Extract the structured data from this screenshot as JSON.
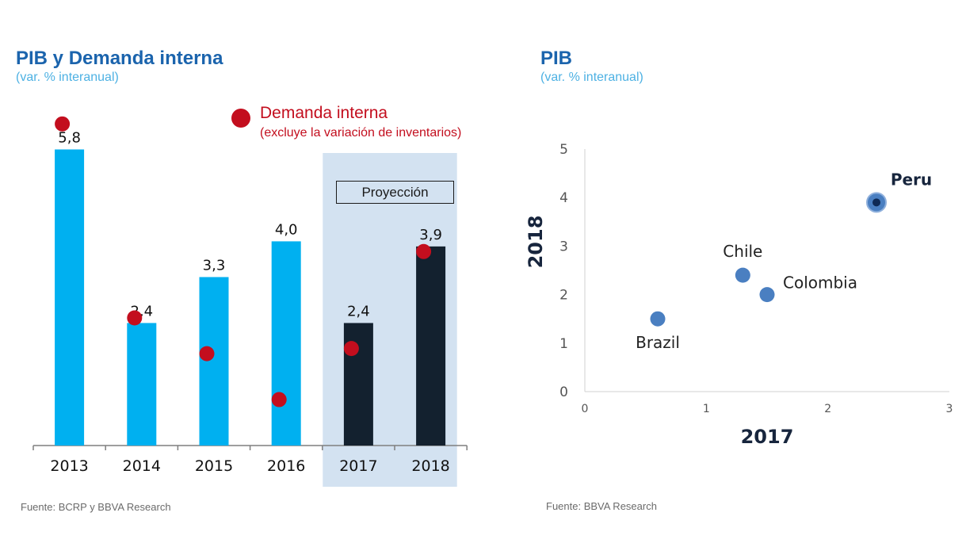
{
  "left_panel": {
    "title": "PIB y Demanda interna",
    "subtitle": "(var. % interanual)",
    "legend_label": "Demanda interna",
    "legend_sublabel": "(excluye la variación de inventarios)",
    "projection_label": "Proyección",
    "source": "Fuente: BCRP y BBVA Research"
  },
  "right_panel": {
    "title": "PIB",
    "subtitle": "(var. % interanual)",
    "source": "Fuente: BBVA Research"
  },
  "colors": {
    "historical_bar": "#00b0f0",
    "projection_bar": "#13212f",
    "projection_band": "#d3e2f1",
    "demand_dot": "#c30e1e",
    "scatter_point": "#4a7fc1",
    "scatter_highlight_core": "#0f2a55",
    "title": "#1b64ad",
    "subtitle": "#4db1e3"
  },
  "chart_data": [
    {
      "type": "bar",
      "categories": [
        "2013",
        "2014",
        "2015",
        "2016",
        "2017",
        "2018"
      ],
      "series": [
        {
          "name": "PIB",
          "values": [
            5.8,
            2.4,
            3.3,
            4.0,
            2.4,
            3.9
          ],
          "value_labels": [
            "5,8",
            "2,4",
            "3,3",
            "4,0",
            "2,4",
            "3,9"
          ],
          "projection": [
            false,
            false,
            false,
            false,
            true,
            true
          ]
        },
        {
          "name": "Demanda interna",
          "style": "dot",
          "values": [
            6.3,
            2.5,
            1.8,
            0.9,
            1.9,
            3.8
          ]
        }
      ],
      "ylim": [
        0,
        6.6
      ],
      "grid": false,
      "legend_position": "top-right"
    },
    {
      "type": "scatter",
      "xlabel": "2017",
      "ylabel": "2018",
      "xlim": [
        0,
        3
      ],
      "ylim": [
        0,
        5
      ],
      "x_ticks": [
        "0",
        "1",
        "2",
        "3"
      ],
      "y_ticks": [
        "0",
        "1",
        "2",
        "3",
        "4",
        "5"
      ],
      "points": [
        {
          "label": "Brazil",
          "x": 0.6,
          "y": 1.5
        },
        {
          "label": "Chile",
          "x": 1.3,
          "y": 2.4
        },
        {
          "label": "Colombia",
          "x": 1.5,
          "y": 2.0
        },
        {
          "label": "Peru",
          "x": 2.4,
          "y": 3.9,
          "highlight": true
        }
      ],
      "grid": false
    }
  ]
}
